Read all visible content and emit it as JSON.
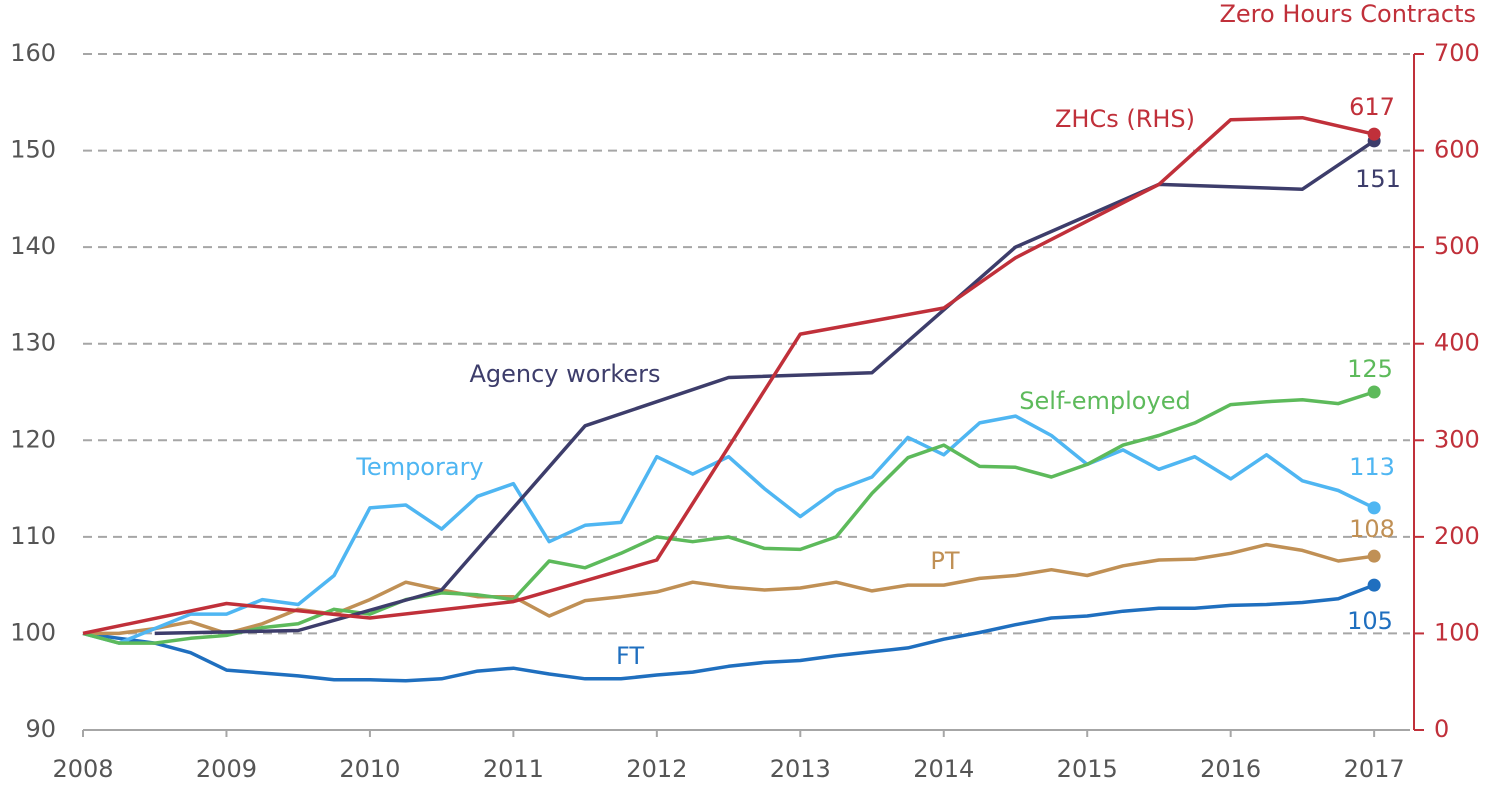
{
  "chart_data": {
    "type": "line",
    "y2_title": "Zero Hours Contracts",
    "xlim": [
      2008,
      2017.25
    ],
    "xticks": [
      2008,
      2009,
      2010,
      2011,
      2012,
      2013,
      2014,
      2015,
      2016,
      2017
    ],
    "ylim": [
      90,
      160
    ],
    "yticks": [
      90,
      100,
      110,
      120,
      130,
      140,
      150,
      160
    ],
    "y2lim": [
      0,
      700
    ],
    "y2ticks": [
      0,
      100,
      200,
      300,
      400,
      500,
      600,
      700
    ],
    "grid": true,
    "series": [
      {
        "name": "FT",
        "color": "#1f6fbf",
        "x": [
          2008,
          2008.25,
          2008.5,
          2008.75,
          2009,
          2009.25,
          2009.5,
          2009.75,
          2010,
          2010.25,
          2010.5,
          2010.75,
          2011,
          2011.25,
          2011.5,
          2011.75,
          2012,
          2012.25,
          2012.5,
          2012.75,
          2013,
          2013.25,
          2013.5,
          2013.75,
          2014,
          2014.25,
          2014.5,
          2014.75,
          2015,
          2015.25,
          2015.5,
          2015.75,
          2016,
          2016.25,
          2016.5,
          2016.75,
          2017
        ],
        "values": [
          100,
          99.5,
          99,
          98,
          96.2,
          95.9,
          95.6,
          95.2,
          95.2,
          95.1,
          95.3,
          96.1,
          96.4,
          95.8,
          95.3,
          95.3,
          95.7,
          96,
          96.6,
          97,
          97.2,
          97.7,
          98.1,
          98.5,
          99.4,
          100.1,
          100.9,
          101.6,
          101.8,
          102.3,
          102.6,
          102.6,
          102.9,
          103,
          103.2,
          103.6,
          105
        ]
      },
      {
        "name": "PT",
        "color": "#c09055",
        "x": [
          2008,
          2008.25,
          2008.5,
          2008.75,
          2009,
          2009.25,
          2009.5,
          2009.75,
          2010,
          2010.25,
          2010.5,
          2010.75,
          2011,
          2011.25,
          2011.5,
          2011.75,
          2012,
          2012.25,
          2012.5,
          2012.75,
          2013,
          2013.25,
          2013.5,
          2013.75,
          2014,
          2014.25,
          2014.5,
          2014.75,
          2015,
          2015.25,
          2015.5,
          2015.75,
          2016,
          2016.25,
          2016.5,
          2016.75,
          2017
        ],
        "values": [
          100,
          100,
          100.5,
          101.2,
          100,
          101,
          102.5,
          102,
          103.5,
          105.3,
          104.5,
          103.8,
          103.8,
          101.8,
          103.4,
          103.8,
          104.3,
          105.3,
          104.8,
          104.5,
          104.7,
          105.3,
          104.4,
          105,
          105,
          105.7,
          106,
          106.6,
          106,
          107,
          107.6,
          107.7,
          108.3,
          109.2,
          108.6,
          107.5,
          108
        ]
      },
      {
        "name": "Temporary",
        "color": "#4fb6f2",
        "x": [
          2008,
          2008.25,
          2008.5,
          2008.75,
          2009,
          2009.25,
          2009.5,
          2009.75,
          2010,
          2010.25,
          2010.5,
          2010.75,
          2011,
          2011.25,
          2011.5,
          2011.75,
          2012,
          2012.25,
          2012.5,
          2012.75,
          2013,
          2013.25,
          2013.5,
          2013.75,
          2014,
          2014.25,
          2014.5,
          2014.75,
          2015,
          2015.25,
          2015.5,
          2015.75,
          2016,
          2016.25,
          2016.5,
          2016.75,
          2017
        ],
        "values": [
          100,
          99,
          100.5,
          102,
          102,
          103.5,
          103,
          106,
          113,
          113.3,
          110.8,
          114.2,
          115.5,
          109.5,
          111.2,
          111.5,
          118.3,
          116.5,
          118.3,
          115,
          112.1,
          114.8,
          116.2,
          120.3,
          118.5,
          121.8,
          122.5,
          120.5,
          117.5,
          119,
          117,
          118.3,
          116,
          118.5,
          115.8,
          114.8,
          113
        ]
      },
      {
        "name": "Self-employed",
        "color": "#5dba5b",
        "x": [
          2008,
          2008.25,
          2008.5,
          2008.75,
          2009,
          2009.25,
          2009.5,
          2009.75,
          2010,
          2010.25,
          2010.5,
          2010.75,
          2011,
          2011.25,
          2011.5,
          2011.75,
          2012,
          2012.25,
          2012.5,
          2012.75,
          2013,
          2013.25,
          2013.5,
          2013.75,
          2014,
          2014.25,
          2014.5,
          2014.75,
          2015,
          2015.25,
          2015.5,
          2015.75,
          2016,
          2016.25,
          2016.5,
          2016.75,
          2017
        ],
        "values": [
          100,
          99,
          99,
          99.5,
          99.8,
          100.6,
          101,
          102.5,
          102,
          103.5,
          104.2,
          104,
          103.5,
          107.5,
          106.8,
          108.3,
          110,
          109.5,
          110,
          108.8,
          108.7,
          110,
          114.5,
          118.2,
          119.5,
          117.3,
          117.2,
          116.2,
          117.5,
          119.5,
          120.5,
          121.8,
          123.7,
          124,
          124.2,
          123.8,
          125
        ]
      },
      {
        "name": "Agency workers",
        "color": "#3d3d6b",
        "x": [
          2008.5,
          2009.5,
          2010.5,
          2011.5,
          2012.5,
          2013.5,
          2014.5,
          2015.5,
          2016.5,
          2017
        ],
        "values": [
          100,
          100.3,
          104.5,
          121.5,
          126.5,
          127,
          140,
          146.5,
          146,
          151
        ]
      },
      {
        "name": "ZHCs (RHS)",
        "color": "#c0303a",
        "axis": "y2",
        "x": [
          2008,
          2009,
          2010,
          2011,
          2012,
          2013,
          2014,
          2014.5,
          2015.5,
          2016,
          2016.5,
          2017
        ],
        "values": [
          100,
          131,
          116,
          133,
          176,
          410,
          437,
          489,
          565,
          632,
          634,
          617
        ]
      }
    ]
  }
}
